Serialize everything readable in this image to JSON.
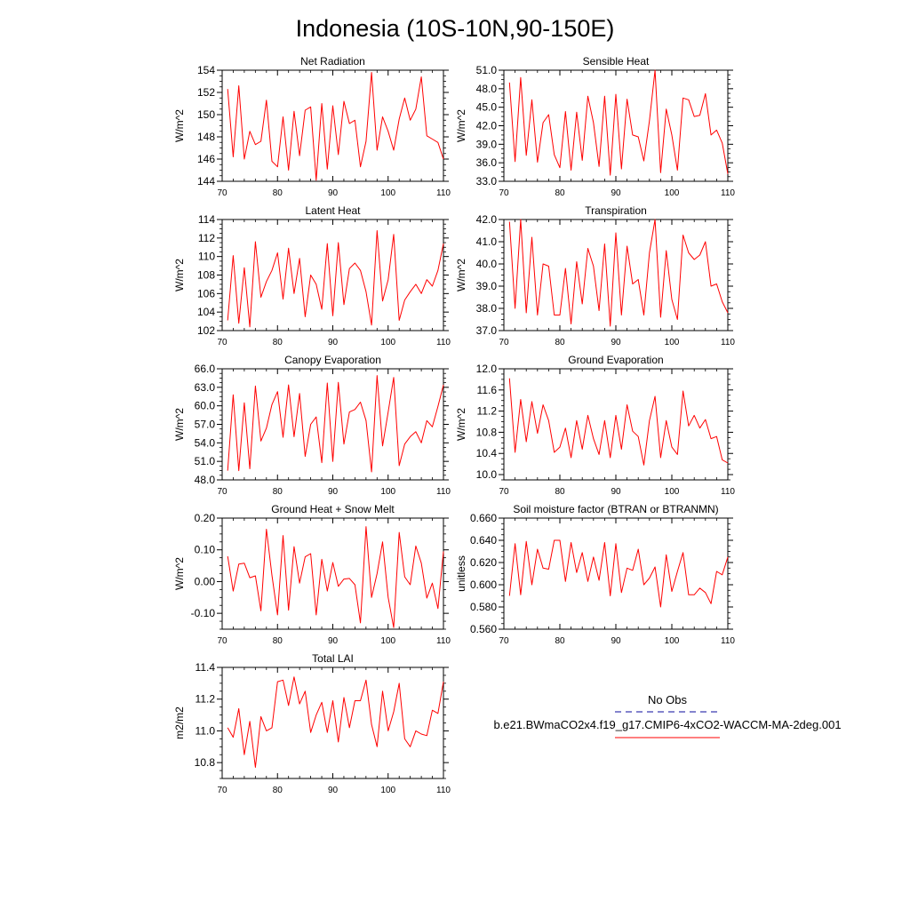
{
  "figure": {
    "title": "Indonesia (10S-10N,90-150E)",
    "legend": {
      "obs_label": "No Obs",
      "model_label": "b.e21.BWmaCO2x4.f19_g17.CMIP6-4xCO2-WACCM-MA-2deg.001",
      "obs_color": "#3b3bb0",
      "model_color": "#ff0000"
    }
  },
  "chart_data": [
    {
      "type": "line",
      "title": "Net Radiation",
      "ylabel": "W/m^2",
      "xlim": [
        70,
        110
      ],
      "ylim": [
        144,
        154
      ],
      "xticks": [
        "70",
        "80",
        "90",
        "100",
        "110"
      ],
      "yticks": [
        "144",
        "146",
        "148",
        "150",
        "152",
        "154"
      ],
      "x": [
        71,
        72,
        73,
        74,
        75,
        76,
        77,
        78,
        79,
        80,
        81,
        82,
        83,
        84,
        85,
        86,
        87,
        88,
        89,
        90,
        91,
        92,
        93,
        94,
        95,
        96,
        97,
        98,
        99,
        100,
        101,
        102,
        103,
        104,
        105,
        106,
        107,
        108,
        109,
        110
      ],
      "values": [
        152.3,
        146.2,
        152.6,
        146.0,
        148.5,
        147.3,
        147.6,
        151.3,
        145.8,
        145.3,
        149.8,
        145.0,
        150.3,
        146.3,
        150.4,
        150.7,
        144.1,
        151.0,
        145.1,
        150.8,
        146.4,
        151.2,
        149.2,
        149.5,
        145.3,
        147.6,
        153.8,
        146.8,
        149.8,
        148.5,
        146.8,
        149.6,
        151.5,
        149.5,
        150.5,
        153.4,
        148.1,
        147.8,
        147.5,
        146.0
      ]
    },
    {
      "type": "line",
      "title": "Sensible Heat",
      "ylabel": "W/m^2",
      "xlim": [
        70,
        110
      ],
      "ylim": [
        33.0,
        51.0
      ],
      "xticks": [
        "70",
        "80",
        "90",
        "100",
        "110"
      ],
      "yticks": [
        "33.0",
        "36.0",
        "39.0",
        "42.0",
        "45.0",
        "48.0",
        "51.0"
      ],
      "x": [
        71,
        72,
        73,
        74,
        75,
        76,
        77,
        78,
        79,
        80,
        81,
        82,
        83,
        84,
        85,
        86,
        87,
        88,
        89,
        90,
        91,
        92,
        93,
        94,
        95,
        96,
        97,
        98,
        99,
        100,
        101,
        102,
        103,
        104,
        105,
        106,
        107,
        108,
        109,
        110
      ],
      "values": [
        49.0,
        36.2,
        49.8,
        37.2,
        46.2,
        36.1,
        42.5,
        43.8,
        37.3,
        35.2,
        44.3,
        34.8,
        44.2,
        36.4,
        46.8,
        42.5,
        35.4,
        46.8,
        34.0,
        47.1,
        35.0,
        46.3,
        40.5,
        40.2,
        36.3,
        42.8,
        51.0,
        34.4,
        44.7,
        40.5,
        34.8,
        46.5,
        46.2,
        43.5,
        43.7,
        47.2,
        40.5,
        41.3,
        39.2,
        34.2
      ]
    },
    {
      "type": "line",
      "title": "Latent Heat",
      "ylabel": "W/m^2",
      "xlim": [
        70,
        110
      ],
      "ylim": [
        102,
        114
      ],
      "xticks": [
        "70",
        "80",
        "90",
        "100",
        "110"
      ],
      "yticks": [
        "102",
        "104",
        "106",
        "108",
        "110",
        "112",
        "114"
      ],
      "x": [
        71,
        72,
        73,
        74,
        75,
        76,
        77,
        78,
        79,
        80,
        81,
        82,
        83,
        84,
        85,
        86,
        87,
        88,
        89,
        90,
        91,
        92,
        93,
        94,
        95,
        96,
        97,
        98,
        99,
        100,
        101,
        102,
        103,
        104,
        105,
        106,
        107,
        108,
        109,
        110
      ],
      "values": [
        103.1,
        110.1,
        102.8,
        108.8,
        102.4,
        111.6,
        105.6,
        107.3,
        108.5,
        110.4,
        105.4,
        110.9,
        106.0,
        109.8,
        103.5,
        108.0,
        107.0,
        104.3,
        111.4,
        103.6,
        111.5,
        104.8,
        108.7,
        109.3,
        108.5,
        106.2,
        102.6,
        112.8,
        105.2,
        107.5,
        112.4,
        103.1,
        105.3,
        106.2,
        107.0,
        106.0,
        107.5,
        106.8,
        108.5,
        111.4
      ]
    },
    {
      "type": "line",
      "title": "Transpiration",
      "ylabel": "W/m^2",
      "xlim": [
        70,
        110
      ],
      "ylim": [
        37.0,
        42.0
      ],
      "xticks": [
        "70",
        "80",
        "90",
        "100",
        "110"
      ],
      "yticks": [
        "37.0",
        "38.0",
        "39.0",
        "40.0",
        "41.0",
        "42.0"
      ],
      "x": [
        71,
        72,
        73,
        74,
        75,
        76,
        77,
        78,
        79,
        80,
        81,
        82,
        83,
        84,
        85,
        86,
        87,
        88,
        89,
        90,
        91,
        92,
        93,
        94,
        95,
        96,
        97,
        98,
        99,
        100,
        101,
        102,
        103,
        104,
        105,
        106,
        107,
        108,
        109,
        110
      ],
      "values": [
        41.9,
        38.0,
        42.0,
        37.8,
        41.2,
        37.7,
        40.0,
        39.9,
        37.7,
        37.7,
        39.8,
        37.3,
        40.1,
        38.2,
        40.7,
        39.9,
        37.9,
        40.9,
        37.2,
        41.4,
        37.7,
        40.8,
        39.1,
        39.3,
        37.7,
        40.5,
        42.0,
        37.6,
        40.6,
        38.4,
        37.5,
        41.3,
        40.5,
        40.2,
        40.4,
        41.0,
        39.0,
        39.1,
        38.3,
        37.8
      ]
    },
    {
      "type": "line",
      "title": "Canopy Evaporation",
      "ylabel": "W/m^2",
      "xlim": [
        70,
        110
      ],
      "ylim": [
        48.0,
        66.0
      ],
      "xticks": [
        "70",
        "80",
        "90",
        "100",
        "110"
      ],
      "yticks": [
        "48.0",
        "51.0",
        "54.0",
        "57.0",
        "60.0",
        "63.0",
        "66.0"
      ],
      "x": [
        71,
        72,
        73,
        74,
        75,
        76,
        77,
        78,
        79,
        80,
        81,
        82,
        83,
        84,
        85,
        86,
        87,
        88,
        89,
        90,
        91,
        92,
        93,
        94,
        95,
        96,
        97,
        98,
        99,
        100,
        101,
        102,
        103,
        104,
        105,
        106,
        107,
        108,
        109,
        110
      ],
      "values": [
        49.5,
        61.8,
        49.5,
        60.5,
        49.8,
        63.2,
        54.3,
        56.4,
        60.2,
        62.3,
        54.9,
        63.4,
        55.0,
        62.0,
        51.8,
        57.0,
        58.2,
        50.8,
        63.7,
        51.0,
        63.8,
        53.8,
        59.0,
        59.4,
        60.6,
        57.6,
        49.3,
        64.9,
        53.5,
        59.0,
        64.6,
        50.3,
        53.8,
        55.0,
        55.8,
        54.0,
        57.6,
        56.6,
        59.9,
        63.4
      ]
    },
    {
      "type": "line",
      "title": "Ground Evaporation",
      "ylabel": "W/m^2",
      "xlim": [
        70,
        110
      ],
      "ylim": [
        9.9,
        12.0
      ],
      "xticks": [
        "70",
        "80",
        "90",
        "100",
        "110"
      ],
      "yticks": [
        "10.0",
        "10.4",
        "10.8",
        "11.2",
        "11.6",
        "12.0"
      ],
      "x": [
        71,
        72,
        73,
        74,
        75,
        76,
        77,
        78,
        79,
        80,
        81,
        82,
        83,
        84,
        85,
        86,
        87,
        88,
        89,
        90,
        91,
        92,
        93,
        94,
        95,
        96,
        97,
        98,
        99,
        100,
        101,
        102,
        103,
        104,
        105,
        106,
        107,
        108,
        109,
        110
      ],
      "values": [
        11.82,
        10.42,
        11.42,
        10.62,
        11.38,
        10.78,
        11.32,
        11.02,
        10.42,
        10.52,
        10.88,
        10.32,
        11.02,
        10.48,
        11.12,
        10.68,
        10.38,
        11.02,
        10.32,
        11.12,
        10.48,
        11.32,
        10.82,
        10.72,
        10.18,
        11.02,
        11.48,
        10.32,
        11.02,
        10.52,
        10.38,
        11.58,
        10.92,
        11.12,
        10.88,
        11.04,
        10.68,
        10.72,
        10.28,
        10.22
      ]
    },
    {
      "type": "line",
      "title": "Ground Heat + Snow Melt",
      "ylabel": "W/m^2",
      "xlim": [
        70,
        110
      ],
      "ylim": [
        -0.15,
        0.2
      ],
      "xticks": [
        "70",
        "80",
        "90",
        "100",
        "110"
      ],
      "yticks": [
        "-0.10",
        "0.00",
        "0.10",
        "0.20"
      ],
      "x": [
        71,
        72,
        73,
        74,
        75,
        76,
        77,
        78,
        79,
        80,
        81,
        82,
        83,
        84,
        85,
        86,
        87,
        88,
        89,
        90,
        91,
        92,
        93,
        94,
        95,
        96,
        97,
        98,
        99,
        100,
        101,
        102,
        103,
        104,
        105,
        106,
        107,
        108,
        109,
        110
      ],
      "values": [
        0.08,
        -0.03,
        0.055,
        0.058,
        0.012,
        0.018,
        -0.092,
        0.165,
        0.02,
        -0.105,
        0.145,
        -0.09,
        0.11,
        -0.005,
        0.078,
        0.088,
        -0.105,
        0.07,
        -0.03,
        0.06,
        -0.015,
        0.008,
        0.01,
        -0.01,
        -0.13,
        0.173,
        -0.05,
        0.025,
        0.125,
        -0.05,
        -0.145,
        0.155,
        0.015,
        -0.01,
        0.112,
        0.058,
        -0.052,
        -0.005,
        -0.085,
        0.095
      ]
    },
    {
      "type": "line",
      "title": "Soil moisture factor (BTRAN or BTRANMN)",
      "ylabel": "unitless",
      "xlim": [
        70,
        110
      ],
      "ylim": [
        0.56,
        0.66
      ],
      "xticks": [
        "70",
        "80",
        "90",
        "100",
        "110"
      ],
      "yticks": [
        "0.560",
        "0.580",
        "0.600",
        "0.620",
        "0.640",
        "0.660"
      ],
      "x": [
        71,
        72,
        73,
        74,
        75,
        76,
        77,
        78,
        79,
        80,
        81,
        82,
        83,
        84,
        85,
        86,
        87,
        88,
        89,
        90,
        91,
        92,
        93,
        94,
        95,
        96,
        97,
        98,
        99,
        100,
        101,
        102,
        103,
        104,
        105,
        106,
        107,
        108,
        109,
        110
      ],
      "values": [
        0.59,
        0.637,
        0.591,
        0.639,
        0.6,
        0.632,
        0.615,
        0.614,
        0.64,
        0.64,
        0.603,
        0.638,
        0.611,
        0.629,
        0.603,
        0.625,
        0.604,
        0.638,
        0.59,
        0.637,
        0.593,
        0.615,
        0.613,
        0.632,
        0.6,
        0.606,
        0.616,
        0.58,
        0.627,
        0.594,
        0.612,
        0.629,
        0.591,
        0.591,
        0.597,
        0.593,
        0.583,
        0.612,
        0.609,
        0.625
      ]
    },
    {
      "type": "line",
      "title": "Total LAI",
      "ylabel": "m2/m2",
      "xlim": [
        70,
        110
      ],
      "ylim": [
        10.7,
        11.4
      ],
      "xticks": [
        "70",
        "80",
        "90",
        "100",
        "110"
      ],
      "yticks": [
        "10.8",
        "11.0",
        "11.2",
        "11.4"
      ],
      "x": [
        71,
        72,
        73,
        74,
        75,
        76,
        77,
        78,
        79,
        80,
        81,
        82,
        83,
        84,
        85,
        86,
        87,
        88,
        89,
        90,
        91,
        92,
        93,
        94,
        95,
        96,
        97,
        98,
        99,
        100,
        101,
        102,
        103,
        104,
        105,
        106,
        107,
        108,
        109,
        110
      ],
      "values": [
        11.02,
        10.96,
        11.14,
        10.85,
        11.06,
        10.77,
        11.09,
        11.0,
        11.02,
        11.31,
        11.32,
        11.16,
        11.34,
        11.17,
        11.25,
        10.99,
        11.1,
        11.18,
        10.99,
        11.19,
        10.93,
        11.21,
        11.02,
        11.19,
        11.19,
        11.32,
        11.04,
        10.9,
        11.25,
        11.0,
        11.12,
        11.3,
        10.95,
        10.9,
        11.0,
        10.98,
        10.97,
        11.13,
        11.11,
        11.31
      ]
    }
  ]
}
